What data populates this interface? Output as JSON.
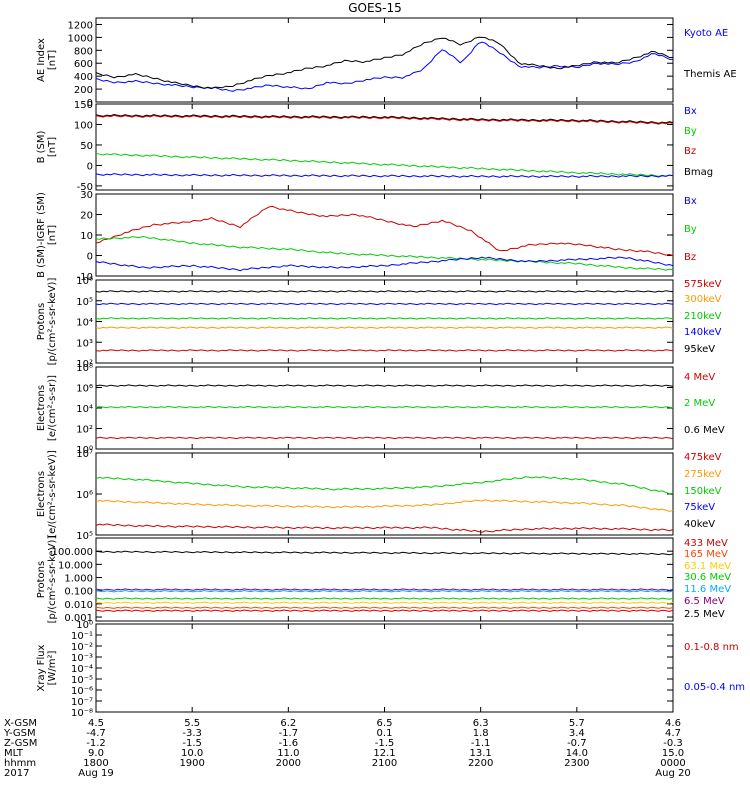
{
  "title": "GOES-15",
  "chart_data": [
    {
      "type": "line",
      "ylabel": [
        "AE Index",
        "[nT]"
      ],
      "ylim": [
        0,
        1300
      ],
      "yticks": [
        "1200",
        "1000",
        "800",
        "600",
        "400",
        "200",
        "0"
      ],
      "ytickvals": [
        1200,
        1000,
        800,
        600,
        400,
        200,
        0
      ],
      "legend": [
        {
          "text": "Kyoto AE",
          "color": "#0000ff"
        },
        {
          "text": "Themis AE",
          "color": "#000000"
        }
      ],
      "series": [
        {
          "name": "Kyoto AE",
          "color": "#0000ff",
          "x": [
            0,
            0.2,
            0.4,
            0.6,
            0.8,
            1.0,
            1.2,
            1.4,
            1.6,
            1.8,
            2.0,
            2.2,
            2.4,
            2.6,
            2.8,
            3.0,
            3.2,
            3.4,
            3.6,
            3.8,
            4.0,
            4.2,
            4.4,
            4.6,
            4.8,
            5.0,
            5.2,
            5.4,
            5.6,
            5.8,
            6.0
          ],
          "values": [
            350,
            300,
            320,
            290,
            260,
            230,
            220,
            170,
            210,
            260,
            230,
            200,
            300,
            280,
            340,
            380,
            380,
            500,
            820,
            600,
            950,
            760,
            550,
            530,
            560,
            530,
            600,
            580,
            620,
            750,
            650
          ]
        },
        {
          "name": "Themis AE",
          "color": "#000000",
          "x": [
            0,
            0.2,
            0.4,
            0.6,
            0.8,
            1.0,
            1.2,
            1.4,
            1.6,
            1.8,
            2.0,
            2.2,
            2.4,
            2.6,
            2.8,
            3.0,
            3.2,
            3.4,
            3.6,
            3.8,
            4.0,
            4.2,
            4.4,
            4.6,
            4.8,
            5.0,
            5.2,
            5.4,
            5.6,
            5.8,
            6.0
          ],
          "values": [
            440,
            380,
            430,
            370,
            300,
            250,
            210,
            240,
            330,
            410,
            450,
            520,
            560,
            640,
            620,
            680,
            740,
            900,
            1000,
            880,
            1020,
            900,
            600,
            560,
            520,
            560,
            620,
            600,
            680,
            780,
            680
          ]
        }
      ]
    },
    {
      "type": "line",
      "ylabel": [
        "B (SM)",
        "[nT]"
      ],
      "ylim": [
        -60,
        150
      ],
      "yticks": [
        "150",
        "100",
        "50",
        "0",
        "-50"
      ],
      "ytickvals": [
        150,
        100,
        50,
        0,
        -50
      ],
      "legend": [
        {
          "text": "Bx",
          "color": "#0000ff"
        },
        {
          "text": "By",
          "color": "#00cc00"
        },
        {
          "text": "Bz",
          "color": "#cc0000"
        },
        {
          "text": "Bmag",
          "color": "#000000"
        }
      ],
      "series": [
        {
          "name": "Bmag",
          "color": "#000000",
          "x": [
            0,
            1,
            2,
            3,
            4,
            5,
            6
          ],
          "values": [
            122,
            121,
            119,
            118,
            112,
            110,
            104
          ]
        },
        {
          "name": "Bz",
          "color": "#cc0000",
          "x": [
            0,
            1,
            2,
            3,
            4,
            5,
            6
          ],
          "values": [
            120,
            119,
            117,
            116,
            110,
            108,
            102
          ]
        },
        {
          "name": "By",
          "color": "#00cc00",
          "x": [
            0,
            1,
            2,
            3,
            4,
            5,
            6
          ],
          "values": [
            28,
            20,
            12,
            2,
            -8,
            -18,
            -26
          ]
        },
        {
          "name": "Bx",
          "color": "#0000ff",
          "x": [
            0,
            1,
            2,
            3,
            4,
            5,
            6
          ],
          "values": [
            -22,
            -24,
            -25,
            -26,
            -27,
            -27,
            -26
          ]
        }
      ]
    },
    {
      "type": "line",
      "ylabel": [
        "B (SM)-IGRF (SM)",
        "[nT]"
      ],
      "ylim": [
        -10,
        30
      ],
      "yticks": [
        "30",
        "20",
        "10",
        "0",
        "-10"
      ],
      "ytickvals": [
        30,
        20,
        10,
        0,
        -10
      ],
      "legend": [
        {
          "text": "Bx",
          "color": "#0000ff"
        },
        {
          "text": "By",
          "color": "#00cc00"
        },
        {
          "text": "Bz",
          "color": "#cc0000"
        }
      ],
      "series": [
        {
          "name": "Bz",
          "color": "#cc0000",
          "x": [
            0,
            0.3,
            0.6,
            0.9,
            1.2,
            1.5,
            1.8,
            2.1,
            2.4,
            2.7,
            3.0,
            3.3,
            3.6,
            3.9,
            4.2,
            4.5,
            4.8,
            5.1,
            5.4,
            5.7,
            6.0
          ],
          "values": [
            6,
            11,
            15,
            16,
            18,
            14,
            24,
            21,
            19,
            20,
            17,
            14,
            17,
            12,
            2,
            5,
            6,
            5,
            3,
            2,
            0
          ]
        },
        {
          "name": "By",
          "color": "#00cc00",
          "x": [
            0,
            0.5,
            1,
            1.5,
            2,
            2.5,
            3,
            3.5,
            4,
            4.5,
            5,
            5.5,
            6
          ],
          "values": [
            8,
            9,
            6,
            4,
            3,
            1,
            0,
            -1,
            -2,
            -3,
            -4,
            -6,
            -7
          ]
        },
        {
          "name": "Bx",
          "color": "#0000ff",
          "x": [
            0,
            0.5,
            1,
            1.5,
            2,
            2.5,
            3,
            3.5,
            4,
            4.5,
            5,
            5.5,
            6
          ],
          "values": [
            -3,
            -6,
            -5,
            -7,
            -5,
            -6,
            -5,
            -3,
            -1,
            -3,
            -2,
            -1,
            -5
          ]
        }
      ]
    },
    {
      "type": "line",
      "ylabel": [
        "Protons",
        "[p/(cm²-s-sr-keV)]"
      ],
      "yscale": "log",
      "ylim": [
        100,
        1000000
      ],
      "yticks": [
        "10⁶",
        "10⁵",
        "10⁴",
        "10³",
        "10²"
      ],
      "ytickvals": [
        1000000,
        100000,
        10000,
        1000,
        100
      ],
      "legend": [
        {
          "text": "575keV",
          "color": "#cc0000"
        },
        {
          "text": "300keV",
          "color": "#ff9900"
        },
        {
          "text": "210keV",
          "color": "#00cc00"
        },
        {
          "text": "140keV",
          "color": "#0000ff"
        },
        {
          "text": "95keV",
          "color": "#000000"
        }
      ],
      "series": [
        {
          "name": "95keV",
          "color": "#000000",
          "x": [
            0,
            6
          ],
          "values": [
            280000,
            280000
          ]
        },
        {
          "name": "140keV",
          "color": "#0000ff",
          "x": [
            0,
            6
          ],
          "values": [
            70000,
            70000
          ]
        },
        {
          "name": "210keV",
          "color": "#00cc00",
          "x": [
            0,
            6
          ],
          "values": [
            14000,
            14000
          ]
        },
        {
          "name": "300keV",
          "color": "#ff9900",
          "x": [
            0,
            6
          ],
          "values": [
            5000,
            5000
          ]
        },
        {
          "name": "575keV",
          "color": "#cc0000",
          "x": [
            0,
            6
          ],
          "values": [
            400,
            400
          ]
        }
      ]
    },
    {
      "type": "line",
      "ylabel": [
        "Electrons",
        "[e/(cm²-s-sr)]"
      ],
      "yscale": "log",
      "ylim": [
        1,
        100000000
      ],
      "yticks": [
        "10⁸",
        "10⁶",
        "10⁴",
        "10²",
        "10⁰"
      ],
      "ytickvals": [
        100000000,
        1000000,
        10000,
        100,
        1
      ],
      "legend": [
        {
          "text": "4 MeV",
          "color": "#cc0000"
        },
        {
          "text": "2 MeV",
          "color": "#00cc00"
        },
        {
          "text": "0.6 MeV",
          "color": "#000000"
        }
      ],
      "series": [
        {
          "name": "0.6 MeV",
          "color": "#000000",
          "x": [
            0,
            6
          ],
          "values": [
            1500000,
            1500000
          ]
        },
        {
          "name": "2 MeV",
          "color": "#00cc00",
          "x": [
            0,
            6
          ],
          "values": [
            12000,
            12000
          ]
        },
        {
          "name": "4 MeV",
          "color": "#cc0000",
          "x": [
            0,
            6
          ],
          "values": [
            12,
            12
          ]
        }
      ]
    },
    {
      "type": "line",
      "ylabel": [
        "Electrons",
        "[e/(cm²-s-sr-keV)]"
      ],
      "yscale": "log",
      "ylim": [
        100000,
        10000000
      ],
      "yticks": [
        "10⁷",
        "10⁶",
        "10⁵"
      ],
      "ytickvals": [
        10000000,
        1000000,
        100000
      ],
      "legend": [
        {
          "text": "475keV",
          "color": "#cc0000"
        },
        {
          "text": "275keV",
          "color": "#ff9900"
        },
        {
          "text": "150keV",
          "color": "#00cc00"
        },
        {
          "text": "75keV",
          "color": "#0000ff"
        },
        {
          "text": "40keV",
          "color": "#000000"
        }
      ],
      "series": [
        {
          "name": "150keV",
          "color": "#00cc00",
          "x": [
            0,
            0.5,
            1,
            1.5,
            2,
            2.5,
            3,
            3.5,
            4,
            4.5,
            5,
            5.5,
            6
          ],
          "values": [
            2500000,
            2200000,
            1800000,
            1500000,
            1400000,
            1300000,
            1350000,
            1500000,
            1900000,
            2600000,
            2300000,
            1700000,
            1000000
          ]
        },
        {
          "name": "275keV",
          "color": "#ff9900",
          "x": [
            0,
            0.5,
            1,
            1.5,
            2,
            2.5,
            3,
            3.5,
            4,
            4.5,
            5,
            5.5,
            6
          ],
          "values": [
            680000,
            620000,
            560000,
            520000,
            500000,
            480000,
            500000,
            540000,
            700000,
            650000,
            600000,
            520000,
            380000
          ]
        },
        {
          "name": "475keV",
          "color": "#cc0000",
          "x": [
            0,
            0.5,
            1,
            1.5,
            2,
            2.5,
            3,
            3.5,
            4,
            4.5,
            5,
            5.5,
            6
          ],
          "values": [
            180000,
            165000,
            160000,
            155000,
            150000,
            148000,
            150000,
            150000,
            120000,
            140000,
            145000,
            140000,
            130000
          ]
        }
      ]
    },
    {
      "type": "line",
      "ylabel": [
        "Protons",
        "[p/(cm²-s-sr-keV)]"
      ],
      "yscale": "log",
      "ylim": [
        0.0005,
        1000
      ],
      "yticks": [
        "100.000",
        "10.000",
        "1.000",
        "0.100",
        "0.010",
        "0.001"
      ],
      "ytickvals": [
        100,
        10,
        1,
        0.1,
        0.01,
        0.001
      ],
      "legend": [
        {
          "text": "433 MeV",
          "color": "#cc0000"
        },
        {
          "text": "165 MeV",
          "color": "#ff4400"
        },
        {
          "text": "63.1 MeV",
          "color": "#ffcc00"
        },
        {
          "text": "30.6 MeV",
          "color": "#00cc00"
        },
        {
          "text": "11.6 MeV",
          "color": "#00aaff"
        },
        {
          "text": "6.5 MeV",
          "color": "#800080"
        },
        {
          "text": "2.5 MeV",
          "color": "#000000"
        }
      ],
      "series": [
        {
          "name": "2.5 MeV",
          "color": "#000000",
          "x": [
            0,
            6
          ],
          "values": [
            90,
            60
          ]
        },
        {
          "name": "6.5 MeV",
          "color": "#800080",
          "x": [
            0,
            6
          ],
          "values": [
            0.12,
            0.12
          ]
        },
        {
          "name": "11.6 MeV",
          "color": "#00aaff",
          "x": [
            0,
            6
          ],
          "values": [
            0.09,
            0.09
          ]
        },
        {
          "name": "30.6 MeV",
          "color": "#00cc00",
          "x": [
            0,
            6
          ],
          "values": [
            0.025,
            0.025
          ]
        },
        {
          "name": "63.1 MeV",
          "color": "#ffcc00",
          "x": [
            0,
            6
          ],
          "values": [
            0.012,
            0.012
          ]
        },
        {
          "name": "165 MeV",
          "color": "#ff4400",
          "x": [
            0,
            6
          ],
          "values": [
            0.005,
            0.005
          ]
        },
        {
          "name": "433 MeV",
          "color": "#cc0000",
          "x": [
            0,
            6
          ],
          "values": [
            0.003,
            0.003
          ]
        }
      ]
    },
    {
      "type": "line",
      "ylabel": [
        "Xray Flux",
        "[W/m²]"
      ],
      "yscale": "log",
      "ylim": [
        1e-08,
        1
      ],
      "yticks": [
        "10⁰",
        "10⁻¹",
        "10⁻²",
        "10⁻³",
        "10⁻⁴",
        "10⁻⁵",
        "10⁻⁶",
        "10⁻⁷",
        "10⁻⁸"
      ],
      "ytickvals": [
        1,
        0.1,
        0.01,
        0.001,
        0.0001,
        1e-05,
        1e-06,
        1e-07,
        1e-08
      ],
      "legend": [
        {
          "text": "0.1-0.8 nm",
          "color": "#cc0000"
        },
        {
          "text": "0.05-0.4 nm",
          "color": "#0000ff"
        }
      ],
      "series": []
    }
  ],
  "footer": {
    "rows": [
      {
        "label": "X-GSM",
        "values": [
          "4.5",
          "5.5",
          "6.2",
          "6.5",
          "6.3",
          "5.7",
          "4.6"
        ]
      },
      {
        "label": "Y-GSM",
        "values": [
          "-4.7",
          "-3.3",
          "-1.7",
          "0.1",
          "1.8",
          "3.4",
          "4.7"
        ]
      },
      {
        "label": "Z-GSM",
        "values": [
          "-1.2",
          "-1.5",
          "-1.6",
          "-1.5",
          "-1.1",
          "-0.7",
          "-0.3"
        ]
      },
      {
        "label": "MLT",
        "values": [
          "9.0",
          "10.0",
          "11.0",
          "12.1",
          "13.1",
          "14.0",
          "15.0"
        ]
      },
      {
        "label": "hhmm",
        "values": [
          "1800",
          "1900",
          "2000",
          "2100",
          "2200",
          "2300",
          "0000"
        ]
      },
      {
        "label": "2017",
        "values": [
          "Aug 19",
          "",
          "",
          "",
          "",
          "",
          "Aug 20"
        ]
      }
    ]
  }
}
